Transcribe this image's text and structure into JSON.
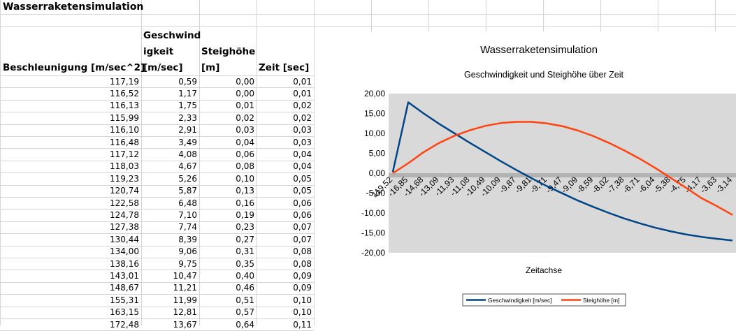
{
  "sheet": {
    "title": "Wasserraketensimulation",
    "headers": {
      "accel": "Beschleunigung [m/sec^2]",
      "speed_line1": "Geschwind",
      "speed_line2": "igkeit",
      "speed_line3": "[m/sec]",
      "height_line1": "Steighöhe",
      "height_line2": "[m]",
      "time": "Zeit [sec]"
    },
    "rows": [
      [
        "117,19",
        "0,59",
        "0,00",
        "0,01"
      ],
      [
        "116,52",
        "1,17",
        "0,00",
        "0,01"
      ],
      [
        "116,13",
        "1,75",
        "0,01",
        "0,02"
      ],
      [
        "115,99",
        "2,33",
        "0,02",
        "0,02"
      ],
      [
        "116,10",
        "2,91",
        "0,03",
        "0,03"
      ],
      [
        "116,48",
        "3,49",
        "0,04",
        "0,03"
      ],
      [
        "117,12",
        "4,08",
        "0,06",
        "0,04"
      ],
      [
        "118,03",
        "4,67",
        "0,08",
        "0,04"
      ],
      [
        "119,23",
        "5,26",
        "0,10",
        "0,05"
      ],
      [
        "120,74",
        "5,87",
        "0,13",
        "0,05"
      ],
      [
        "122,58",
        "6,48",
        "0,16",
        "0,06"
      ],
      [
        "124,78",
        "7,10",
        "0,19",
        "0,06"
      ],
      [
        "127,38",
        "7,74",
        "0,23",
        "0,07"
      ],
      [
        "130,44",
        "8,39",
        "0,27",
        "0,07"
      ],
      [
        "134,00",
        "9,06",
        "0,31",
        "0,08"
      ],
      [
        "138,16",
        "9,75",
        "0,35",
        "0,08"
      ],
      [
        "143,01",
        "10,47",
        "0,40",
        "0,09"
      ],
      [
        "148,67",
        "11,21",
        "0,46",
        "0,09"
      ],
      [
        "155,31",
        "11,99",
        "0,51",
        "0,10"
      ],
      [
        "163,15",
        "12,81",
        "0,57",
        "0,10"
      ],
      [
        "172,48",
        "13,67",
        "0,64",
        "0,11"
      ]
    ]
  },
  "chart_data": {
    "type": "line",
    "title": "Wasserraketensimulation",
    "subtitle": "Geschwindigkeit und Steighöhe über Zeit",
    "xlabel": "Zeitachse",
    "ylabel": "",
    "ylim": [
      -20,
      20
    ],
    "y_ticks": [
      "20,00",
      "15,00",
      "10,00",
      "5,00",
      "0,00",
      "-5,00",
      "-10,00",
      "-15,00",
      "-20,00"
    ],
    "x_tick_labels": [
      "119,52",
      "-16,85",
      "-14,68",
      "-13,09",
      "-11,93",
      "-11,08",
      "-10,49",
      "-10,09",
      "-9,87",
      "-9,81",
      "-9,71",
      "-9,47",
      "-9,09",
      "-8,59",
      "-8,02",
      "-7,38",
      "-6,71",
      "-6,04",
      "-5,38",
      "-4,75",
      "-4,17",
      "-3,63",
      "-3,14"
    ],
    "x": [
      0,
      1,
      2,
      3,
      4,
      5,
      6,
      7,
      8,
      9,
      10,
      11,
      12,
      13,
      14,
      15,
      16,
      17,
      18,
      19,
      20,
      21,
      22
    ],
    "series": [
      {
        "name": "Geschwindigkeit [m/sec]",
        "color": "#004586",
        "values": [
          0.3,
          17.8,
          15.0,
          12.4,
          10.0,
          7.6,
          5.3,
          3.0,
          0.8,
          -1.3,
          -3.3,
          -5.1,
          -6.9,
          -8.5,
          -10.0,
          -11.4,
          -12.6,
          -13.7,
          -14.6,
          -15.4,
          -16.0,
          -16.5,
          -16.9
        ]
      },
      {
        "name": "Steighöhe [m]",
        "color": "#ff420e",
        "values": [
          0.0,
          2.5,
          5.3,
          7.6,
          9.4,
          10.8,
          11.9,
          12.6,
          12.9,
          12.9,
          12.5,
          11.8,
          10.7,
          9.3,
          7.6,
          5.7,
          3.6,
          1.3,
          -1.2,
          -3.7,
          -6.3,
          -8.3,
          -10.5
        ]
      }
    ],
    "legend_position": "bottom",
    "grid": false,
    "plot_bg": "#d9d9d9"
  }
}
